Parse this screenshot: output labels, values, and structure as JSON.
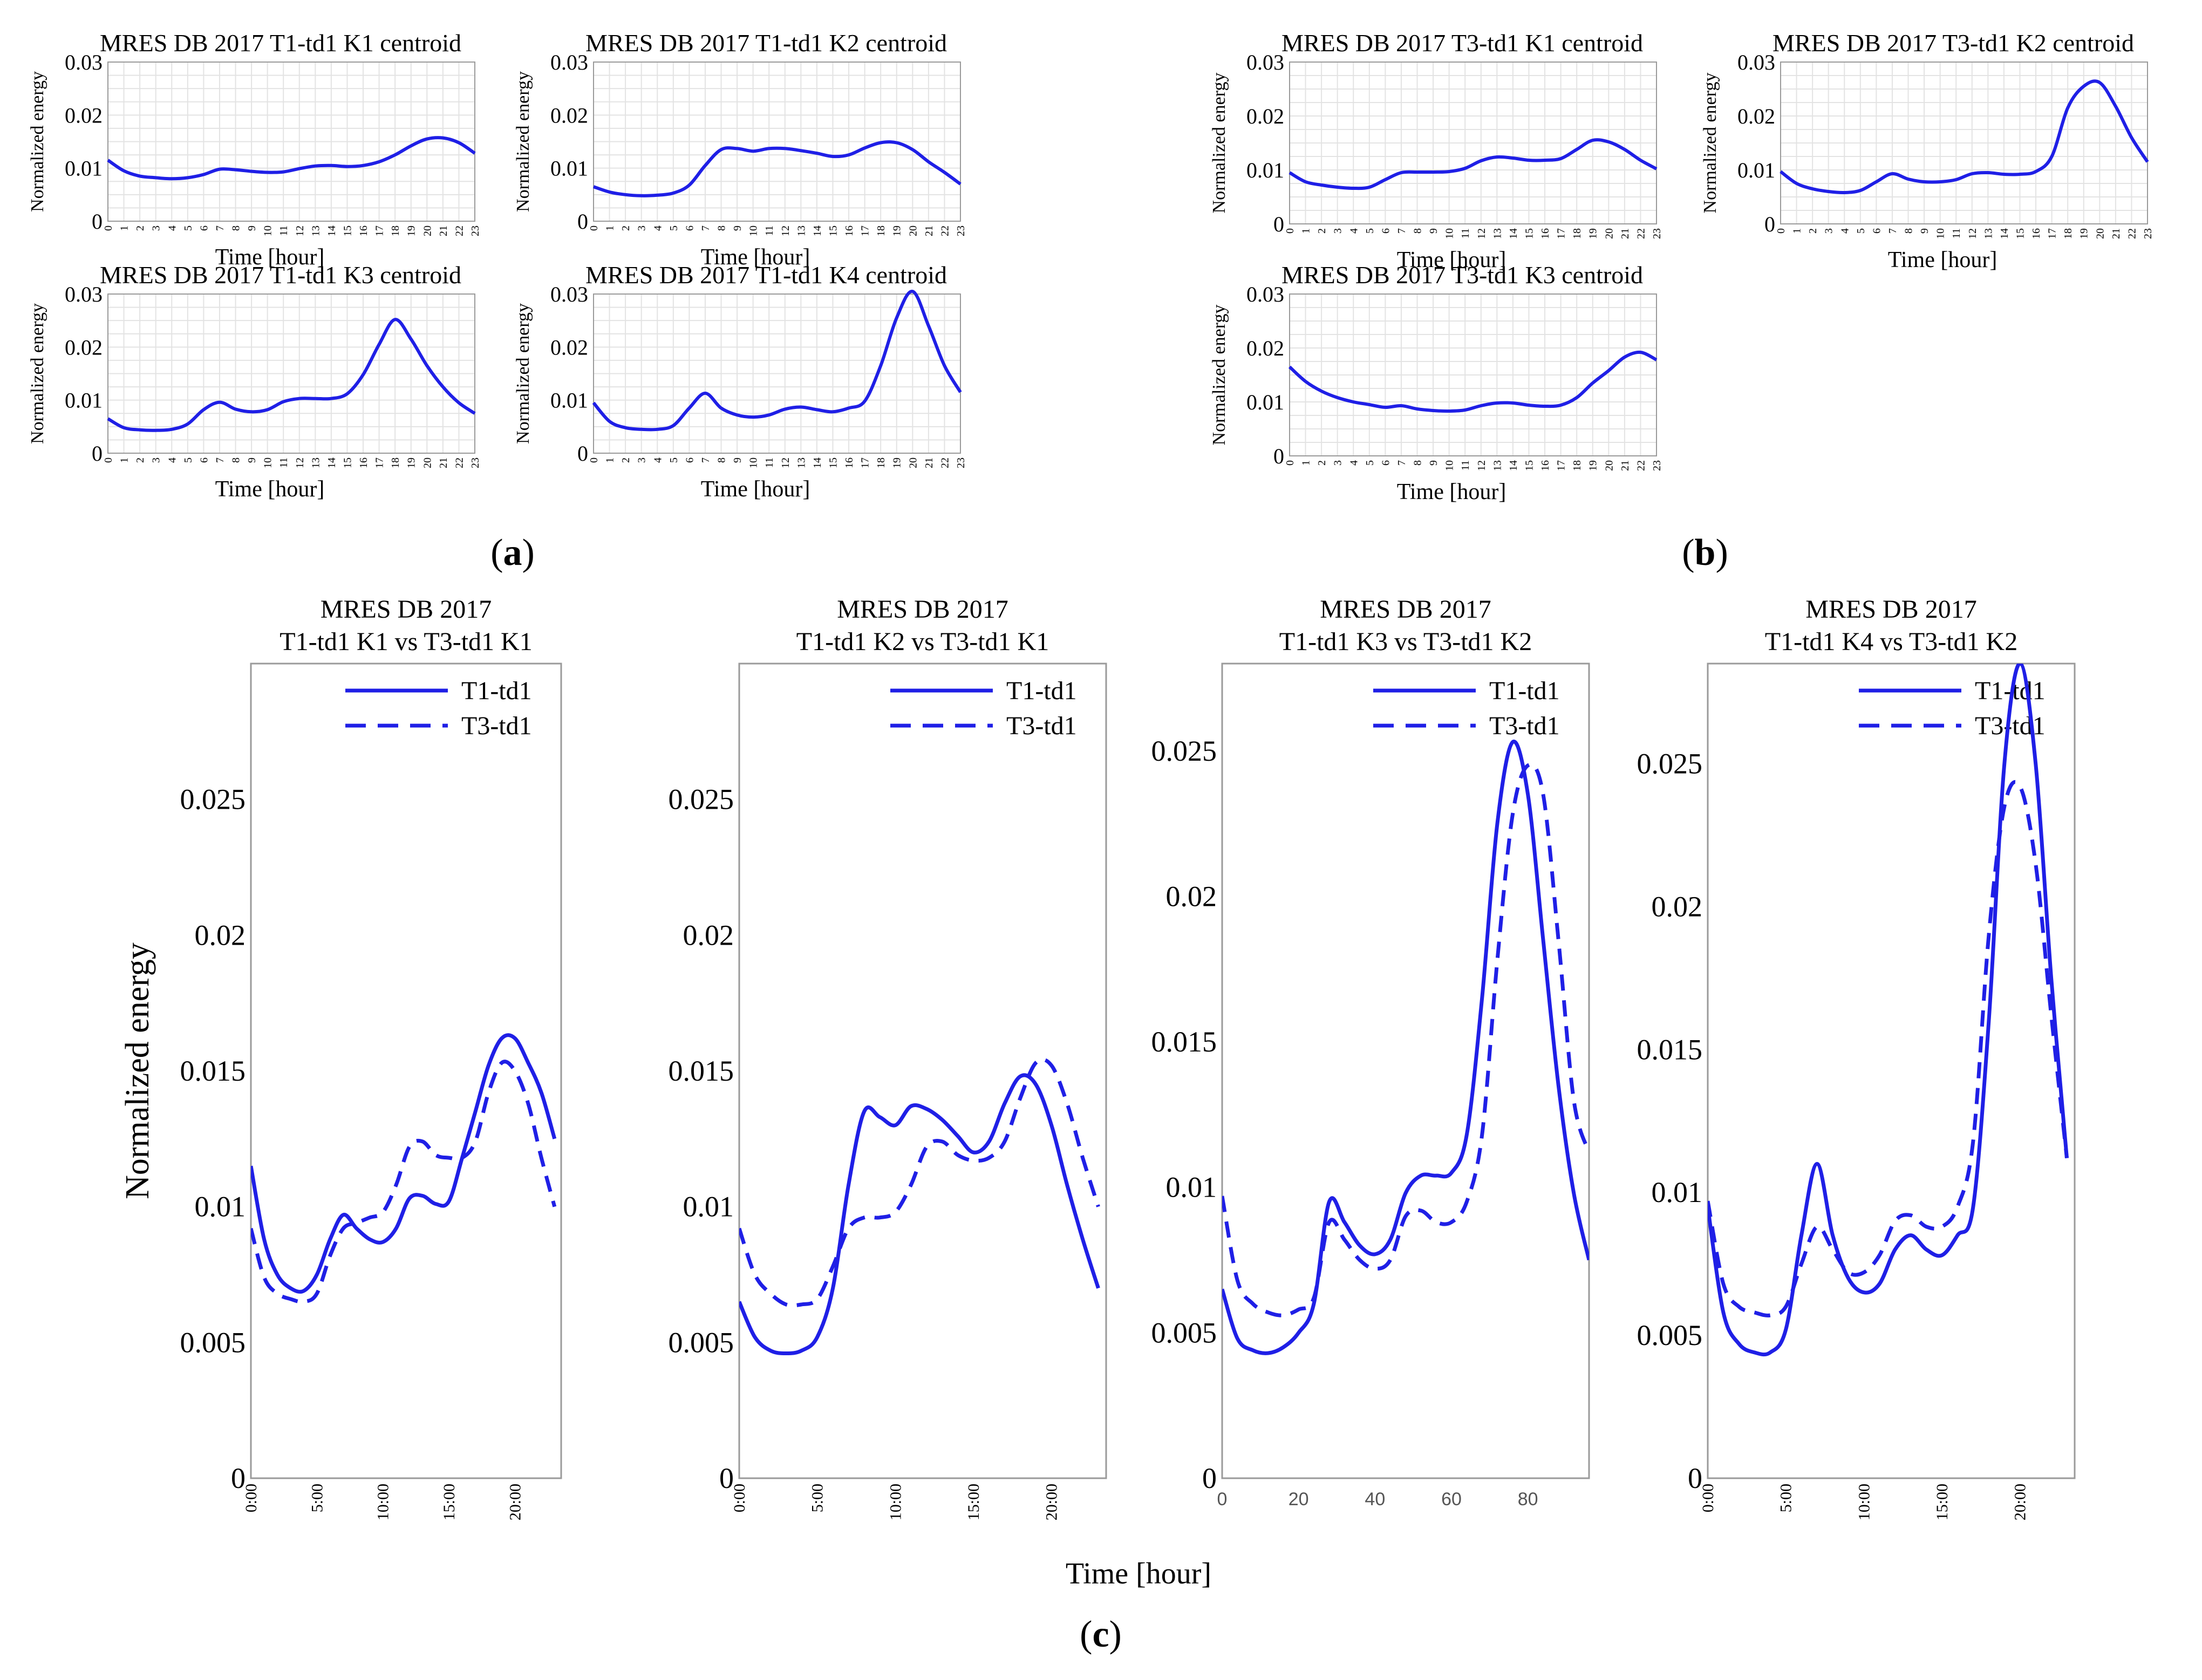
{
  "colors": {
    "line": "#1f1fe6",
    "axis": "#9a9a9a",
    "grid": "#e3e3e3",
    "text": "#000000"
  },
  "captions": {
    "a": "a",
    "b": "b",
    "c": "c"
  },
  "hour_ticks": [
    "0",
    "1",
    "2",
    "3",
    "4",
    "5",
    "6",
    "7",
    "8",
    "9",
    "10",
    "11",
    "12",
    "13",
    "14",
    "15",
    "16",
    "17",
    "18",
    "19",
    "20",
    "21",
    "22",
    "23"
  ],
  "chart_data": [
    {
      "id": "a1",
      "type": "line",
      "title": "MRES DB 2017 T1-td1 K1 centroid",
      "xlabel": "Time [hour]",
      "ylabel": "Normalized energy",
      "ylim": [
        0,
        0.03
      ],
      "yticks": [
        "0",
        "0.01",
        "0.02",
        "0.03"
      ],
      "x": [
        0,
        1,
        2,
        3,
        4,
        5,
        6,
        7,
        8,
        9,
        10,
        11,
        12,
        13,
        14,
        15,
        16,
        17,
        18,
        19,
        20,
        21,
        22,
        23
      ],
      "series": [
        {
          "name": "K1",
          "values": [
            0.0115,
            0.0095,
            0.0085,
            0.0082,
            0.008,
            0.0082,
            0.0088,
            0.0098,
            0.0097,
            0.0094,
            0.0092,
            0.0093,
            0.0099,
            0.0104,
            0.0105,
            0.0103,
            0.0105,
            0.0112,
            0.0125,
            0.0142,
            0.0155,
            0.0157,
            0.0148,
            0.0128
          ]
        }
      ]
    },
    {
      "id": "a2",
      "type": "line",
      "title": "MRES DB 2017 T1-td1 K2 centroid",
      "xlabel": "Time [hour]",
      "ylabel": "Normalized energy",
      "ylim": [
        0,
        0.03
      ],
      "yticks": [
        "0",
        "0.01",
        "0.02",
        "0.03"
      ],
      "x": [
        0,
        1,
        2,
        3,
        4,
        5,
        6,
        7,
        8,
        9,
        10,
        11,
        12,
        13,
        14,
        15,
        16,
        17,
        18,
        19,
        20,
        21,
        22,
        23
      ],
      "series": [
        {
          "name": "K2",
          "values": [
            0.0065,
            0.0055,
            0.005,
            0.0048,
            0.0049,
            0.0053,
            0.0068,
            0.0105,
            0.0135,
            0.0137,
            0.0132,
            0.0137,
            0.0137,
            0.0133,
            0.0128,
            0.0122,
            0.0125,
            0.0138,
            0.0148,
            0.0148,
            0.0135,
            0.0112,
            0.0092,
            0.007
          ]
        }
      ]
    },
    {
      "id": "a3",
      "type": "line",
      "title": "MRES DB 2017 T1-td1 K3 centroid",
      "xlabel": "Time [hour]",
      "ylabel": "Normalized energy",
      "ylim": [
        0,
        0.03
      ],
      "yticks": [
        "0",
        "0.01",
        "0.02",
        "0.03"
      ],
      "x": [
        0,
        1,
        2,
        3,
        4,
        5,
        6,
        7,
        8,
        9,
        10,
        11,
        12,
        13,
        14,
        15,
        16,
        17,
        18,
        19,
        20,
        21,
        22,
        23
      ],
      "series": [
        {
          "name": "K3",
          "values": [
            0.0065,
            0.0048,
            0.0044,
            0.0043,
            0.0045,
            0.0055,
            0.0082,
            0.0096,
            0.0083,
            0.0078,
            0.0082,
            0.0097,
            0.0103,
            0.0103,
            0.0103,
            0.0112,
            0.0148,
            0.0205,
            0.0252,
            0.0215,
            0.0165,
            0.0125,
            0.0095,
            0.0075
          ]
        }
      ]
    },
    {
      "id": "a4",
      "type": "line",
      "title": "MRES DB 2017 T1-td1 K4 centroid",
      "xlabel": "Time [hour]",
      "ylabel": "Normalized energy",
      "ylim": [
        0,
        0.03
      ],
      "yticks": [
        "0",
        "0.01",
        "0.02",
        "0.03"
      ],
      "x": [
        0,
        1,
        2,
        3,
        4,
        5,
        6,
        7,
        8,
        9,
        10,
        11,
        12,
        13,
        14,
        15,
        16,
        17,
        18,
        19,
        20,
        21,
        22,
        23
      ],
      "series": [
        {
          "name": "K4",
          "values": [
            0.0095,
            0.006,
            0.0048,
            0.0045,
            0.0045,
            0.0052,
            0.0085,
            0.0113,
            0.0085,
            0.0072,
            0.0068,
            0.0072,
            0.0083,
            0.0087,
            0.0082,
            0.0078,
            0.0085,
            0.0098,
            0.0165,
            0.0255,
            0.0305,
            0.024,
            0.0165,
            0.0115
          ]
        }
      ]
    },
    {
      "id": "b1",
      "type": "line",
      "title": "MRES DB 2017 T3-td1 K1 centroid",
      "xlabel": "Time [hour]",
      "ylabel": "Normalized energy",
      "ylim": [
        0,
        0.03
      ],
      "yticks": [
        "0",
        "0.01",
        "0.02",
        "0.03"
      ],
      "x": [
        0,
        1,
        2,
        3,
        4,
        5,
        6,
        7,
        8,
        9,
        10,
        11,
        12,
        13,
        14,
        15,
        16,
        17,
        18,
        19,
        20,
        21,
        22,
        23
      ],
      "series": [
        {
          "name": "K1",
          "values": [
            0.0095,
            0.0078,
            0.0072,
            0.0068,
            0.0066,
            0.0068,
            0.0082,
            0.0095,
            0.0096,
            0.0096,
            0.0097,
            0.0103,
            0.0117,
            0.0124,
            0.0122,
            0.0118,
            0.0118,
            0.0121,
            0.0138,
            0.0155,
            0.0152,
            0.0138,
            0.0118,
            0.0102
          ]
        }
      ]
    },
    {
      "id": "b2",
      "type": "line",
      "title": "MRES DB 2017 T3-td1 K2 centroid",
      "xlabel": "Time [hour]",
      "ylabel": "Normalized energy",
      "ylim": [
        0,
        0.03
      ],
      "yticks": [
        "0",
        "0.01",
        "0.02",
        "0.03"
      ],
      "x": [
        0,
        1,
        2,
        3,
        4,
        5,
        6,
        7,
        8,
        9,
        10,
        11,
        12,
        13,
        14,
        15,
        16,
        17,
        18,
        19,
        20,
        21,
        22,
        23
      ],
      "series": [
        {
          "name": "K2",
          "values": [
            0.0097,
            0.0075,
            0.0065,
            0.006,
            0.0058,
            0.0062,
            0.0078,
            0.0093,
            0.0083,
            0.0078,
            0.0078,
            0.0082,
            0.0093,
            0.0095,
            0.0092,
            0.0092,
            0.0097,
            0.0125,
            0.0215,
            0.0255,
            0.0262,
            0.0218,
            0.016,
            0.0115
          ]
        }
      ]
    },
    {
      "id": "b3",
      "type": "line",
      "title": "MRES DB 2017 T3-td1 K3 centroid",
      "xlabel": "Time [hour]",
      "ylabel": "Normalized energy",
      "ylim": [
        0,
        0.03
      ],
      "yticks": [
        "0",
        "0.01",
        "0.02",
        "0.03"
      ],
      "x": [
        0,
        1,
        2,
        3,
        4,
        5,
        6,
        7,
        8,
        9,
        10,
        11,
        12,
        13,
        14,
        15,
        16,
        17,
        18,
        19,
        20,
        21,
        22,
        23
      ],
      "series": [
        {
          "name": "K3",
          "values": [
            0.0165,
            0.0138,
            0.012,
            0.0108,
            0.01,
            0.0095,
            0.009,
            0.0093,
            0.0087,
            0.0084,
            0.0083,
            0.0085,
            0.0093,
            0.0098,
            0.0098,
            0.0094,
            0.0092,
            0.0094,
            0.0108,
            0.0135,
            0.0158,
            0.0183,
            0.0192,
            0.0178
          ]
        }
      ]
    },
    {
      "id": "c1",
      "type": "line",
      "title": "MRES DB 2017",
      "subtitle": "T1-td1 K1 vs T3-td1 K1",
      "xlabel": "Time [hour]",
      "ylabel": "Normalized energy",
      "ylim": [
        0,
        0.03
      ],
      "yticks": [
        "0",
        "0.005",
        "0.01",
        "0.015",
        "0.02",
        "0.025"
      ],
      "xlim": [
        0,
        23.5
      ],
      "xticks": [
        "0:00",
        "5:00",
        "10:00",
        "15:00",
        "20:00"
      ],
      "x": [
        0,
        1,
        2,
        3,
        4,
        5,
        6,
        7,
        8,
        9,
        10,
        11,
        12,
        13,
        14,
        15,
        16,
        17,
        18,
        19,
        20,
        21,
        22,
        23
      ],
      "series": [
        {
          "name": "T1-td1",
          "style": "solid",
          "values": [
            0.0115,
            0.0088,
            0.0075,
            0.007,
            0.0069,
            0.0075,
            0.0088,
            0.0097,
            0.0092,
            0.0088,
            0.0087,
            0.0092,
            0.0103,
            0.0104,
            0.0101,
            0.0102,
            0.0118,
            0.0135,
            0.0152,
            0.0162,
            0.0162,
            0.0153,
            0.0142,
            0.0125
          ]
        },
        {
          "name": "T3-td1",
          "style": "dashed",
          "values": [
            0.0092,
            0.0074,
            0.0068,
            0.0066,
            0.0065,
            0.0068,
            0.0082,
            0.0092,
            0.0094,
            0.0096,
            0.0098,
            0.0108,
            0.0122,
            0.0124,
            0.0119,
            0.0118,
            0.0118,
            0.0124,
            0.0142,
            0.0153,
            0.015,
            0.0138,
            0.0118,
            0.01
          ]
        }
      ]
    },
    {
      "id": "c2",
      "type": "line",
      "title": "MRES DB 2017",
      "subtitle": "T1-td1 K2 vs T3-td1 K1",
      "xlabel": "Time [hour]",
      "ylabel": "Normalized energy",
      "ylim": [
        0,
        0.03
      ],
      "yticks": [
        "0",
        "0.005",
        "0.01",
        "0.015",
        "0.02",
        "0.025"
      ],
      "xlim": [
        0,
        23.5
      ],
      "xticks": [
        "0:00",
        "5:00",
        "10:00",
        "15:00",
        "20:00"
      ],
      "x": [
        0,
        1,
        2,
        3,
        4,
        5,
        6,
        7,
        8,
        9,
        10,
        11,
        12,
        13,
        14,
        15,
        16,
        17,
        18,
        19,
        20,
        21,
        22,
        23
      ],
      "series": [
        {
          "name": "T1-td1",
          "style": "solid",
          "values": [
            0.0065,
            0.0052,
            0.0047,
            0.0046,
            0.0047,
            0.0052,
            0.007,
            0.0108,
            0.0135,
            0.0133,
            0.013,
            0.0137,
            0.0136,
            0.0132,
            0.0126,
            0.012,
            0.0124,
            0.0138,
            0.0148,
            0.0145,
            0.013,
            0.0108,
            0.0088,
            0.007
          ]
        },
        {
          "name": "T3-td1",
          "style": "dashed",
          "values": [
            0.0092,
            0.0075,
            0.0068,
            0.0064,
            0.0064,
            0.0066,
            0.0078,
            0.0092,
            0.0096,
            0.0096,
            0.0098,
            0.0108,
            0.0122,
            0.0124,
            0.0119,
            0.0117,
            0.0118,
            0.0124,
            0.014,
            0.0153,
            0.0152,
            0.0138,
            0.0118,
            0.01
          ]
        }
      ]
    },
    {
      "id": "c3",
      "type": "line",
      "title": "MRES DB 2017",
      "subtitle": "T1-td1 K3 vs T3-td1 K2",
      "xlabel": "Time [hour]",
      "ylabel": "Normalized energy",
      "ylim": [
        0,
        0.028
      ],
      "yticks": [
        "0",
        "0.005",
        "0.01",
        "0.015",
        "0.02",
        "0.025"
      ],
      "xlim": [
        0,
        96
      ],
      "xticks": [
        "0",
        "20",
        "40",
        "60",
        "80"
      ],
      "x": [
        0,
        4,
        8,
        12,
        16,
        20,
        24,
        28,
        32,
        36,
        40,
        44,
        48,
        52,
        56,
        60,
        64,
        68,
        72,
        76,
        80,
        84,
        88,
        92,
        96
      ],
      "series": [
        {
          "name": "T1-td1",
          "style": "solid",
          "values": [
            0.0065,
            0.0048,
            0.0044,
            0.0043,
            0.0045,
            0.005,
            0.006,
            0.0095,
            0.0088,
            0.008,
            0.0077,
            0.0082,
            0.0098,
            0.0104,
            0.0104,
            0.0105,
            0.0118,
            0.0165,
            0.0225,
            0.0253,
            0.0235,
            0.0185,
            0.0135,
            0.0098,
            0.0075
          ]
        },
        {
          "name": "T3-td1",
          "style": "dashed",
          "values": [
            0.0097,
            0.0068,
            0.006,
            0.0057,
            0.0056,
            0.0058,
            0.0062,
            0.0088,
            0.0082,
            0.0075,
            0.0072,
            0.0075,
            0.009,
            0.0092,
            0.0088,
            0.0088,
            0.0095,
            0.0118,
            0.0178,
            0.0228,
            0.0245,
            0.0235,
            0.0185,
            0.013,
            0.0112
          ]
        }
      ]
    },
    {
      "id": "c4",
      "type": "line",
      "title": "MRES DB 2017",
      "subtitle": "T1-td1 K4 vs T3-td1 K2",
      "xlabel": "Time [hour]",
      "ylabel": "Normalized energy",
      "ylim": [
        0,
        0.0285
      ],
      "yticks": [
        "0",
        "0.005",
        "0.01",
        "0.015",
        "0.02",
        "0.025"
      ],
      "xlim": [
        0,
        23.5
      ],
      "xticks": [
        "0:00",
        "5:00",
        "10:00",
        "15:00",
        "20:00"
      ],
      "x": [
        0,
        1,
        2,
        3,
        4,
        5,
        6,
        7,
        8,
        9,
        10,
        11,
        12,
        13,
        14,
        15,
        16,
        17,
        18,
        19,
        20,
        21,
        22,
        23
      ],
      "series": [
        {
          "name": "T1-td1",
          "style": "solid",
          "values": [
            0.0095,
            0.0058,
            0.0047,
            0.0044,
            0.0044,
            0.0052,
            0.0085,
            0.011,
            0.0085,
            0.007,
            0.0065,
            0.0068,
            0.008,
            0.0085,
            0.008,
            0.0078,
            0.0085,
            0.0095,
            0.016,
            0.025,
            0.0285,
            0.025,
            0.0175,
            0.0112
          ]
        },
        {
          "name": "T3-td1",
          "style": "dashed",
          "values": [
            0.0097,
            0.0068,
            0.006,
            0.0058,
            0.0057,
            0.006,
            0.0075,
            0.0088,
            0.008,
            0.0072,
            0.0072,
            0.0078,
            0.009,
            0.0092,
            0.0088,
            0.0088,
            0.0095,
            0.0118,
            0.019,
            0.0235,
            0.0242,
            0.0215,
            0.0162,
            0.0112
          ]
        }
      ]
    }
  ]
}
